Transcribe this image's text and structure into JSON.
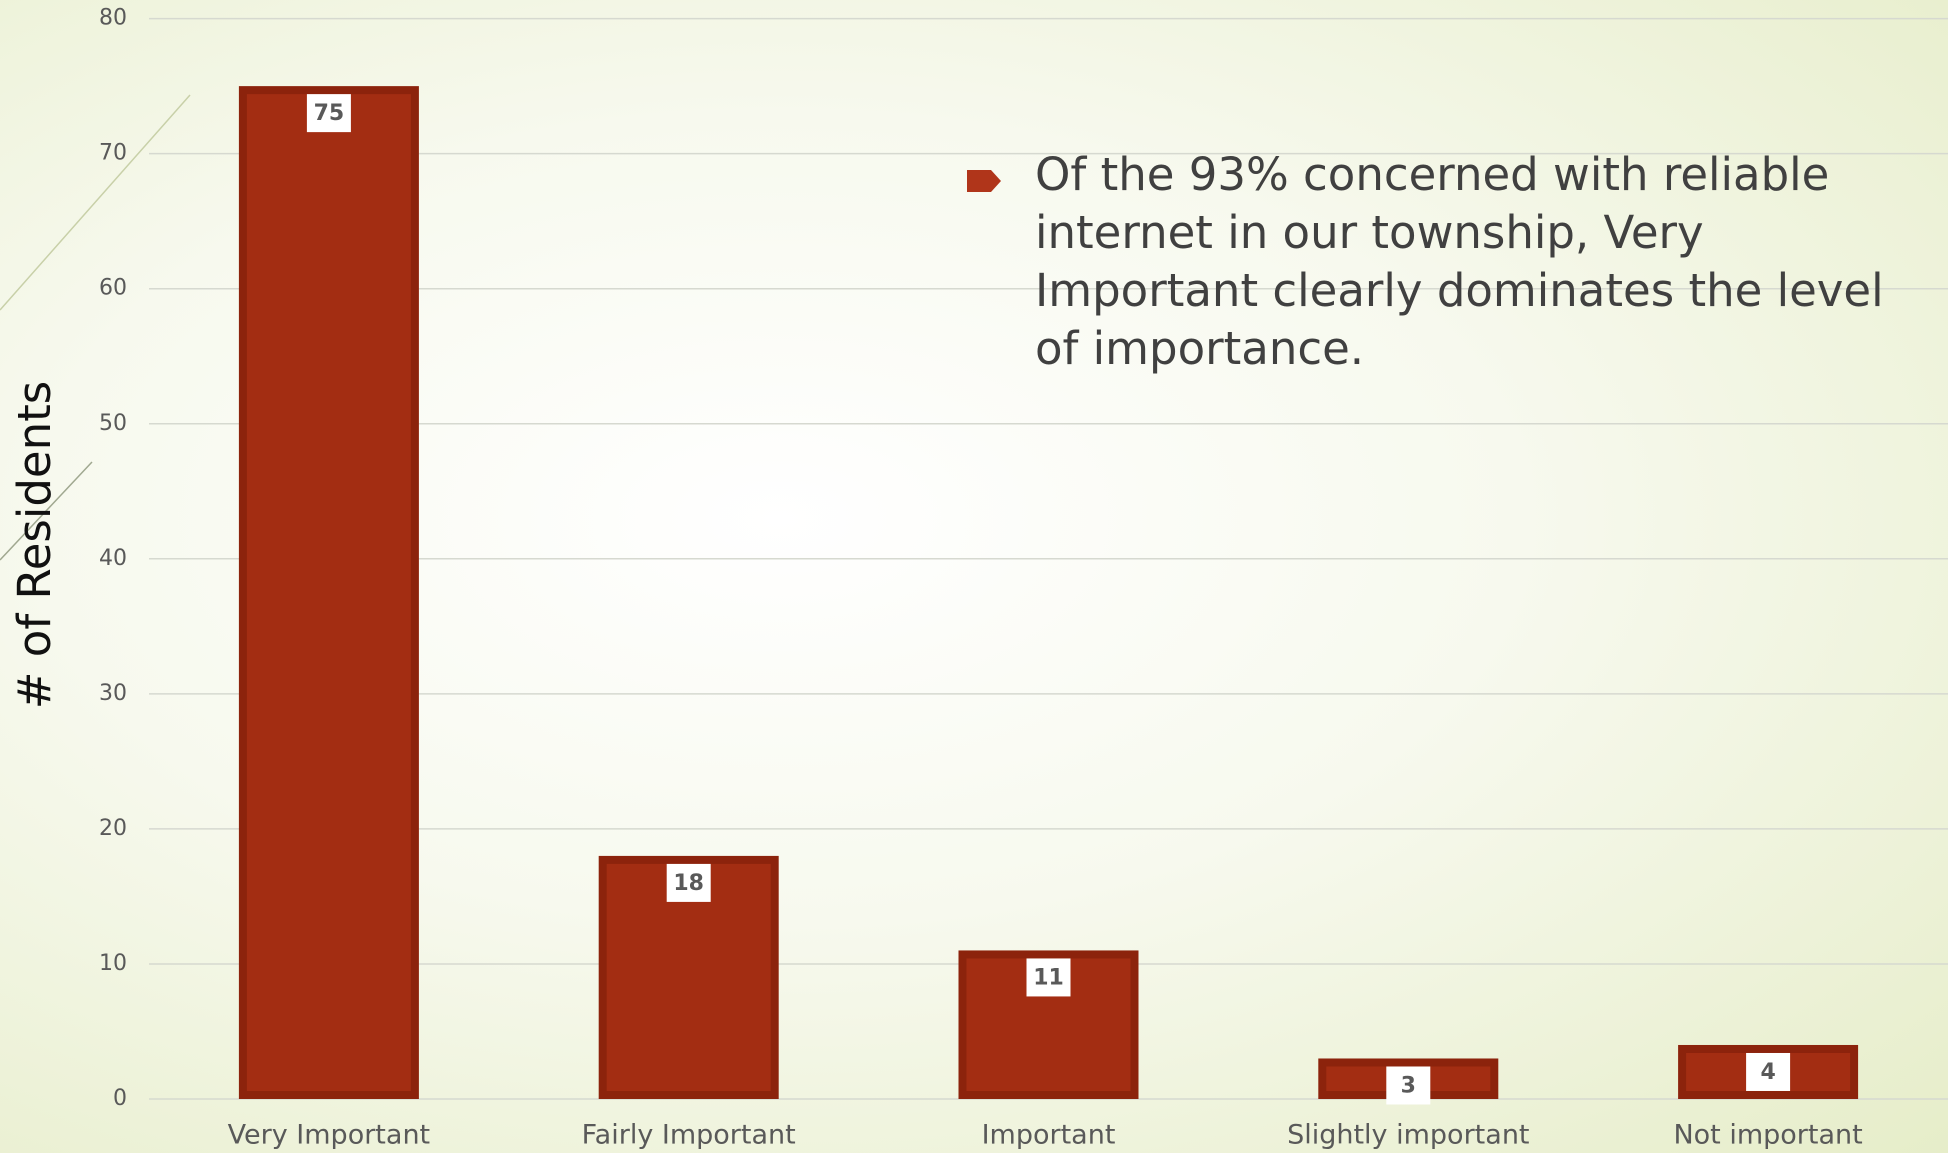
{
  "chart_data": {
    "type": "bar",
    "y_label": "# of Residents",
    "annotation": "Of the 93% concerned with reliable internet in our township, Very Important clearly dominates the level of importance.",
    "categories": [
      "Very Important",
      "Fairly Important",
      "Important",
      "Slightly important",
      "Not important"
    ],
    "values": [
      75,
      18,
      11,
      3,
      4
    ],
    "color": "#a32d12",
    "ylim": [
      0,
      80
    ],
    "yticks": [
      0,
      10,
      20,
      30,
      40,
      50,
      60,
      70,
      80
    ],
    "grid": true
  }
}
